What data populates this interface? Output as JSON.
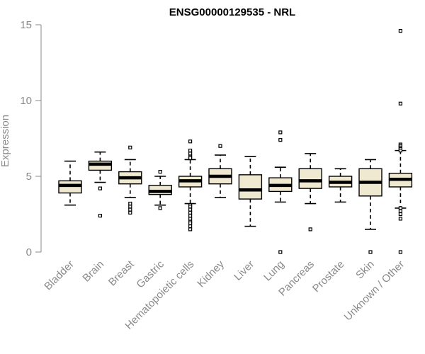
{
  "chart_data": {
    "type": "box",
    "title": "ENSG00000129535 - NRL",
    "ylabel": "Expression",
    "xlabel": "",
    "ylim": [
      0,
      15
    ],
    "yticks": [
      0,
      5,
      10,
      15
    ],
    "box_fill": "#efe9d2",
    "categories": [
      "Bladder",
      "Brain",
      "Breast",
      "Gastric",
      "Hematopoietic cells",
      "Kidney",
      "Liver",
      "Lung",
      "Pancreas",
      "Prostate",
      "Skin",
      "Unknown / Other"
    ],
    "boxes": [
      {
        "category": "Bladder",
        "whisker_low": 3.1,
        "q1": 3.9,
        "median": 4.4,
        "q3": 4.7,
        "whisker_high": 6.0,
        "outliers": []
      },
      {
        "category": "Brain",
        "whisker_low": 4.6,
        "q1": 5.4,
        "median": 5.8,
        "q3": 6.0,
        "whisker_high": 6.6,
        "outliers": [
          4.2,
          2.4
        ]
      },
      {
        "category": "Breast",
        "whisker_low": 3.6,
        "q1": 4.5,
        "median": 4.9,
        "q3": 5.3,
        "whisker_high": 6.1,
        "outliers": [
          6.9,
          3.2,
          3.0,
          2.8,
          2.6
        ]
      },
      {
        "category": "Gastric",
        "whisker_low": 3.1,
        "q1": 3.8,
        "median": 4.0,
        "q3": 4.4,
        "whisker_high": 5.0,
        "outliers": [
          5.3,
          2.9
        ]
      },
      {
        "category": "Hematopoietic cells",
        "whisker_low": 3.2,
        "q1": 4.3,
        "median": 4.7,
        "q3": 5.0,
        "whisker_high": 6.1,
        "outliers": [
          7.3,
          6.7,
          6.5,
          6.3,
          6.2,
          3.1,
          3.0,
          2.8,
          2.6,
          2.4,
          2.2,
          2.0,
          1.9,
          1.7,
          1.5
        ]
      },
      {
        "category": "Kidney",
        "whisker_low": 3.6,
        "q1": 4.5,
        "median": 5.0,
        "q3": 5.5,
        "whisker_high": 6.4,
        "outliers": [
          7.0
        ]
      },
      {
        "category": "Liver",
        "whisker_low": 1.7,
        "q1": 3.5,
        "median": 4.1,
        "q3": 5.1,
        "whisker_high": 6.3,
        "outliers": []
      },
      {
        "category": "Lung",
        "whisker_low": 3.3,
        "q1": 4.0,
        "median": 4.4,
        "q3": 4.9,
        "whisker_high": 5.6,
        "outliers": [
          7.9,
          7.4,
          0.0
        ]
      },
      {
        "category": "Pancreas",
        "whisker_low": 3.2,
        "q1": 4.2,
        "median": 4.7,
        "q3": 5.5,
        "whisker_high": 6.5,
        "outliers": [
          1.5
        ]
      },
      {
        "category": "Prostate",
        "whisker_low": 3.3,
        "q1": 4.3,
        "median": 4.6,
        "q3": 5.0,
        "whisker_high": 5.5,
        "outliers": []
      },
      {
        "category": "Skin",
        "whisker_low": 1.5,
        "q1": 3.7,
        "median": 4.6,
        "q3": 5.5,
        "whisker_high": 6.1,
        "outliers": [
          0.0
        ]
      },
      {
        "category": "Unknown / Other",
        "whisker_low": 2.9,
        "q1": 4.3,
        "median": 4.8,
        "q3": 5.2,
        "whisker_high": 6.7,
        "outliers": [
          14.6,
          9.8,
          7.1,
          7.0,
          6.9,
          6.8,
          6.7,
          2.9,
          2.7,
          2.5,
          2.2,
          0.0
        ]
      }
    ]
  }
}
